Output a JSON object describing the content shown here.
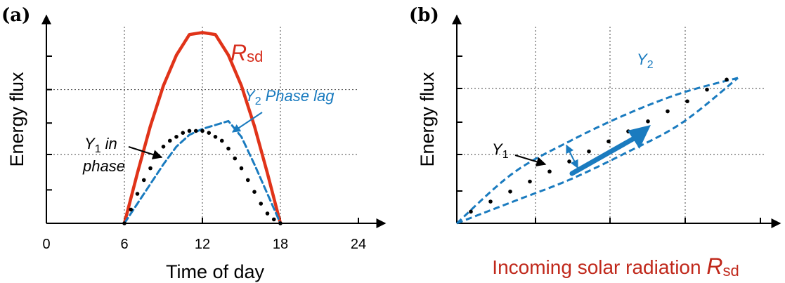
{
  "chart_data": [
    {
      "panel": "(a)",
      "type": "line",
      "xlabel": "Time of day",
      "ylabel": "Energy flux",
      "xticks": [
        "0",
        "6",
        "12",
        "18",
        "24"
      ],
      "xlim": [
        0,
        24
      ],
      "ylim": [
        0,
        1
      ],
      "series": [
        {
          "name": "R_sd",
          "label_main": "R",
          "label_sub": "sd",
          "color": "#e03319",
          "style": "solid",
          "x": [
            6,
            7,
            8,
            9,
            10,
            11,
            12,
            13,
            14,
            15,
            16,
            17,
            18
          ],
          "y": [
            0.0,
            0.255,
            0.495,
            0.7,
            0.855,
            0.96,
            0.97,
            0.96,
            0.855,
            0.7,
            0.495,
            0.255,
            0.0
          ]
        },
        {
          "name": "Y_2",
          "label_main": "Y",
          "label_sub": "2",
          "label_rest": "Phase lag",
          "color": "#1a7bbf",
          "style": "dashed",
          "x": [
            6,
            7,
            8,
            9,
            10,
            11,
            12,
            13,
            14,
            15,
            16,
            17,
            18
          ],
          "y": [
            0.0,
            0.1,
            0.2,
            0.3,
            0.39,
            0.45,
            0.48,
            0.5,
            0.52,
            0.44,
            0.3,
            0.15,
            0.0
          ]
        },
        {
          "name": "Y_1",
          "label_main": "Y",
          "label_sub": "1",
          "label_rest": "in",
          "label_line2": "phase",
          "color": "#000000",
          "style": "dotted",
          "x": [
            6,
            6.5,
            7,
            7.5,
            8,
            8.5,
            9,
            9.5,
            10,
            10.5,
            11,
            11.5,
            12,
            12.5,
            13,
            13.5,
            14,
            14.5,
            15,
            15.5,
            16,
            16.5,
            17,
            17.5,
            18
          ],
          "y": [
            0.0,
            0.07,
            0.15,
            0.22,
            0.28,
            0.34,
            0.39,
            0.42,
            0.44,
            0.46,
            0.47,
            0.47,
            0.47,
            0.46,
            0.44,
            0.42,
            0.38,
            0.33,
            0.28,
            0.22,
            0.16,
            0.1,
            0.05,
            0.02,
            0.0
          ]
        }
      ]
    },
    {
      "panel": "(b)",
      "type": "scatter",
      "xlabel_main": "Incoming solar radiation ",
      "xlabel_sym": "R",
      "xlabel_sub": "sd",
      "ylabel": "Energy flux",
      "xlim": [
        0,
        1
      ],
      "ylim": [
        0,
        1
      ],
      "series": [
        {
          "name": "Y_1",
          "label_main": "Y",
          "label_sub": "1",
          "color": "#000000",
          "x": [
            0.05,
            0.12,
            0.19,
            0.26,
            0.33,
            0.4,
            0.47,
            0.54,
            0.61,
            0.68,
            0.75,
            0.82,
            0.89,
            0.96
          ],
          "y": [
            0.07,
            0.13,
            0.19,
            0.25,
            0.31,
            0.37,
            0.43,
            0.49,
            0.55,
            0.61,
            0.67,
            0.73,
            0.8,
            0.86
          ]
        },
        {
          "name": "Y_2",
          "label_main": "Y",
          "label_sub": "2",
          "color": "#1a7bbf",
          "upper": {
            "x": [
              0.0,
              0.2,
              0.4,
              0.6,
              0.8,
              1.0
            ],
            "y": [
              0.0,
              0.3,
              0.49,
              0.65,
              0.78,
              0.87
            ]
          },
          "lower": {
            "x": [
              0.0,
              0.2,
              0.4,
              0.6,
              0.8,
              1.0
            ],
            "y": [
              0.0,
              0.13,
              0.26,
              0.42,
              0.6,
              0.87
            ]
          }
        }
      ]
    }
  ]
}
